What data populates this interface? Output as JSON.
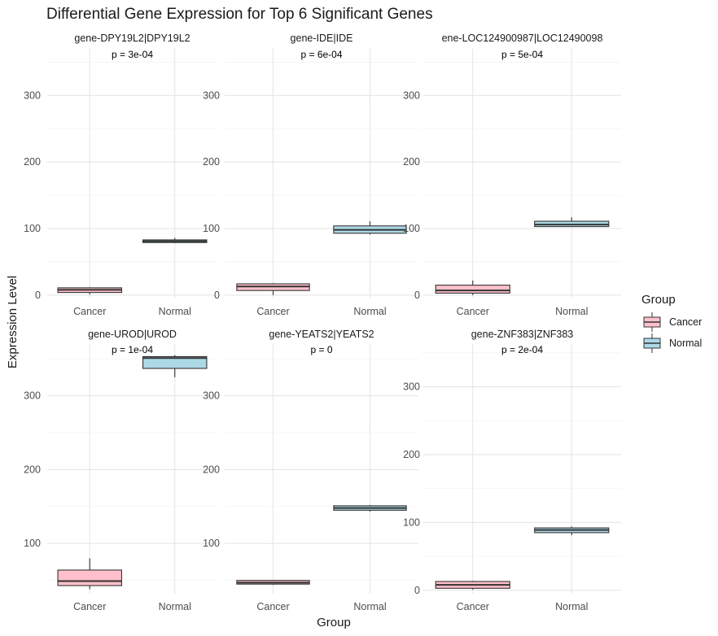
{
  "chart_data": {
    "type": "box",
    "title": "Differential Gene Expression for Top 6 Significant Genes",
    "xlabel": "Group",
    "ylabel": "Expression Level",
    "categories": [
      "Cancer",
      "Normal"
    ],
    "legend": {
      "title": "Group",
      "position": "right",
      "entries": [
        {
          "label": "Cancer",
          "color": "#FFC0CB"
        },
        {
          "label": "Normal",
          "color": "#ADD8E6"
        }
      ]
    },
    "grid": true,
    "panels": [
      {
        "label": "gene-DPY19L2|DPY19L2",
        "p_value": "p = 3e-04",
        "ylim": [
          -5,
          370
        ],
        "yticks": [
          0,
          100,
          200,
          300
        ],
        "boxes": [
          {
            "group": "Cancer",
            "min": 1,
            "q1": 4,
            "median": 8,
            "q3": 11,
            "max": 12
          },
          {
            "group": "Normal",
            "min": 78,
            "q1": 79,
            "median": 81,
            "q3": 83,
            "max": 86
          }
        ]
      },
      {
        "label": "gene-IDE|IDE",
        "p_value": "p = 6e-04",
        "ylim": [
          -5,
          370
        ],
        "yticks": [
          0,
          100,
          200,
          300
        ],
        "boxes": [
          {
            "group": "Cancer",
            "min": 0,
            "q1": 7,
            "median": 13,
            "q3": 17,
            "max": 18
          },
          {
            "group": "Normal",
            "min": 91,
            "q1": 93,
            "median": 98,
            "q3": 104,
            "max": 111
          }
        ]
      },
      {
        "label": "ene-LOC124900987|LOC12490098",
        "p_value": "p = 5e-04",
        "ylim": [
          -5,
          370
        ],
        "yticks": [
          0,
          100,
          200,
          300
        ],
        "boxes": [
          {
            "group": "Cancer",
            "min": 0,
            "q1": 3,
            "median": 7,
            "q3": 15,
            "max": 22
          },
          {
            "group": "Normal",
            "min": 103,
            "q1": 103,
            "median": 106,
            "q3": 111,
            "max": 117
          }
        ]
      },
      {
        "label": "gene-UROD|UROD",
        "p_value": "p = 1e-04",
        "ylim": [
          32,
          370
        ],
        "yticks": [
          100,
          200,
          300
        ],
        "boxes": [
          {
            "group": "Cancer",
            "min": 38,
            "q1": 43,
            "median": 49,
            "q3": 64,
            "max": 80
          },
          {
            "group": "Normal",
            "min": 325,
            "q1": 337,
            "median": 351,
            "q3": 353,
            "max": 355
          }
        ]
      },
      {
        "label": "gene-YEATS2|YEATS2",
        "p_value": "p = 0",
        "ylim": [
          32,
          370
        ],
        "yticks": [
          100,
          200,
          300
        ],
        "boxes": [
          {
            "group": "Cancer",
            "min": 44,
            "q1": 45,
            "median": 47,
            "q3": 50,
            "max": 50
          },
          {
            "group": "Normal",
            "min": 143,
            "q1": 145,
            "median": 148,
            "q3": 151,
            "max": 152
          }
        ]
      },
      {
        "label": "gene-ZNF383|ZNF383",
        "p_value": "p = 2e-04",
        "ylim": [
          -5,
          363
        ],
        "yticks": [
          0,
          100,
          200,
          300
        ],
        "boxes": [
          {
            "group": "Cancer",
            "min": 1,
            "q1": 3,
            "median": 8,
            "q3": 13,
            "max": 14
          },
          {
            "group": "Normal",
            "min": 81,
            "q1": 85,
            "median": 89,
            "q3": 92,
            "max": 94
          }
        ]
      }
    ]
  }
}
